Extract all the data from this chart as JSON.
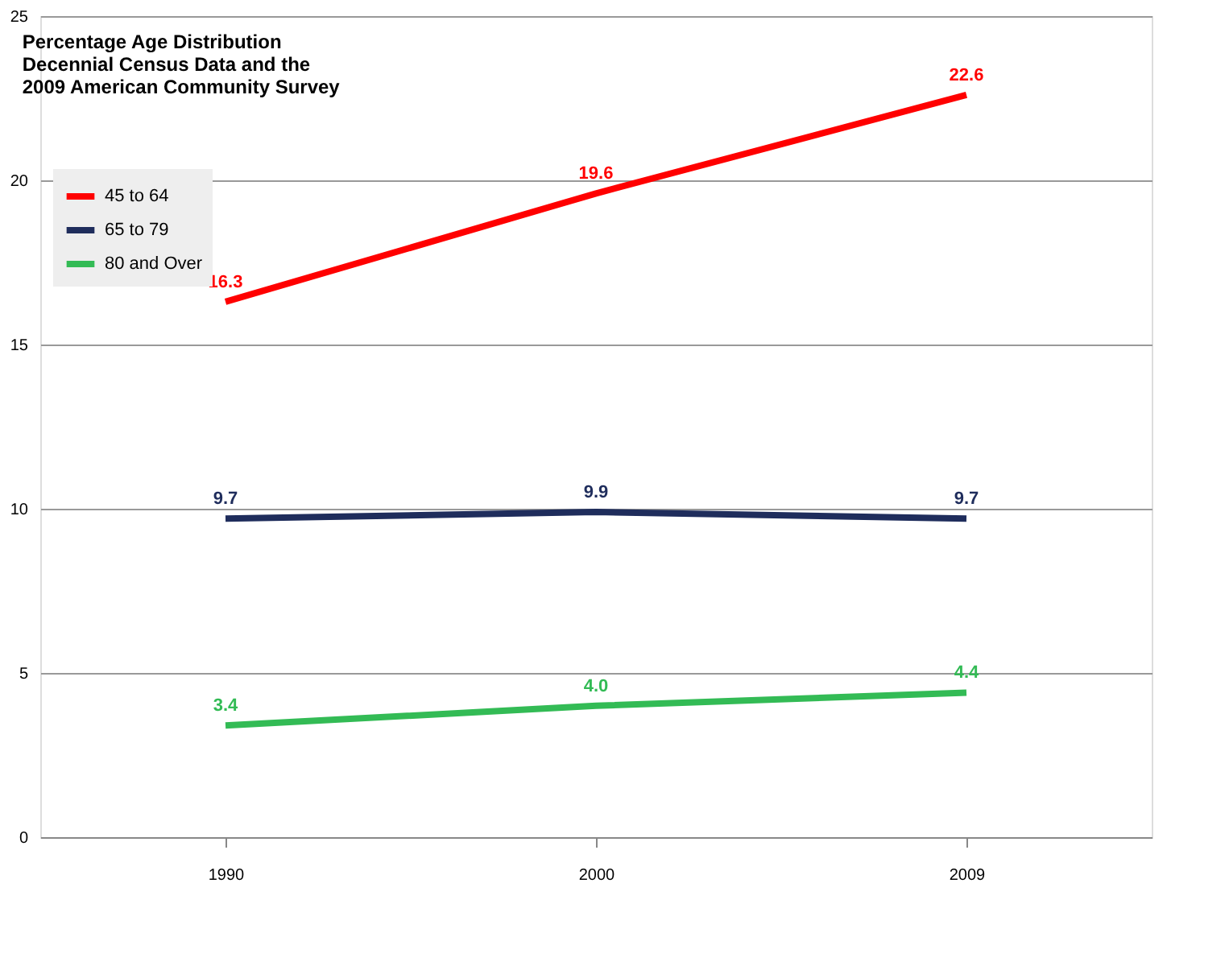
{
  "chart_data": {
    "type": "line",
    "title": "Percentage Age Distribution\nDecennial Census Data and the\n2009 American Community Survey",
    "categories": [
      "1990",
      "2000",
      "2009"
    ],
    "series": [
      {
        "name": "45 to 64",
        "color": "#ff0000",
        "values": [
          16.3,
          19.6,
          22.6
        ],
        "value_labels": [
          "16.3",
          "19.6",
          "22.6"
        ]
      },
      {
        "name": "65 to 79",
        "color": "#1f2d5c",
        "values": [
          9.7,
          9.9,
          9.7
        ],
        "value_labels": [
          "9.7",
          "9.9",
          "9.7"
        ]
      },
      {
        "name": "80 and Over",
        "color": "#33bb55",
        "values": [
          3.4,
          4.0,
          4.4
        ],
        "value_labels": [
          "3.4",
          "4.0",
          "4.4"
        ]
      }
    ],
    "ylim": [
      0,
      25
    ],
    "yticks": [
      0,
      5,
      10,
      15,
      20,
      25
    ],
    "grid": "y",
    "legend": "top left",
    "marker": "none",
    "line_style": "solid"
  }
}
